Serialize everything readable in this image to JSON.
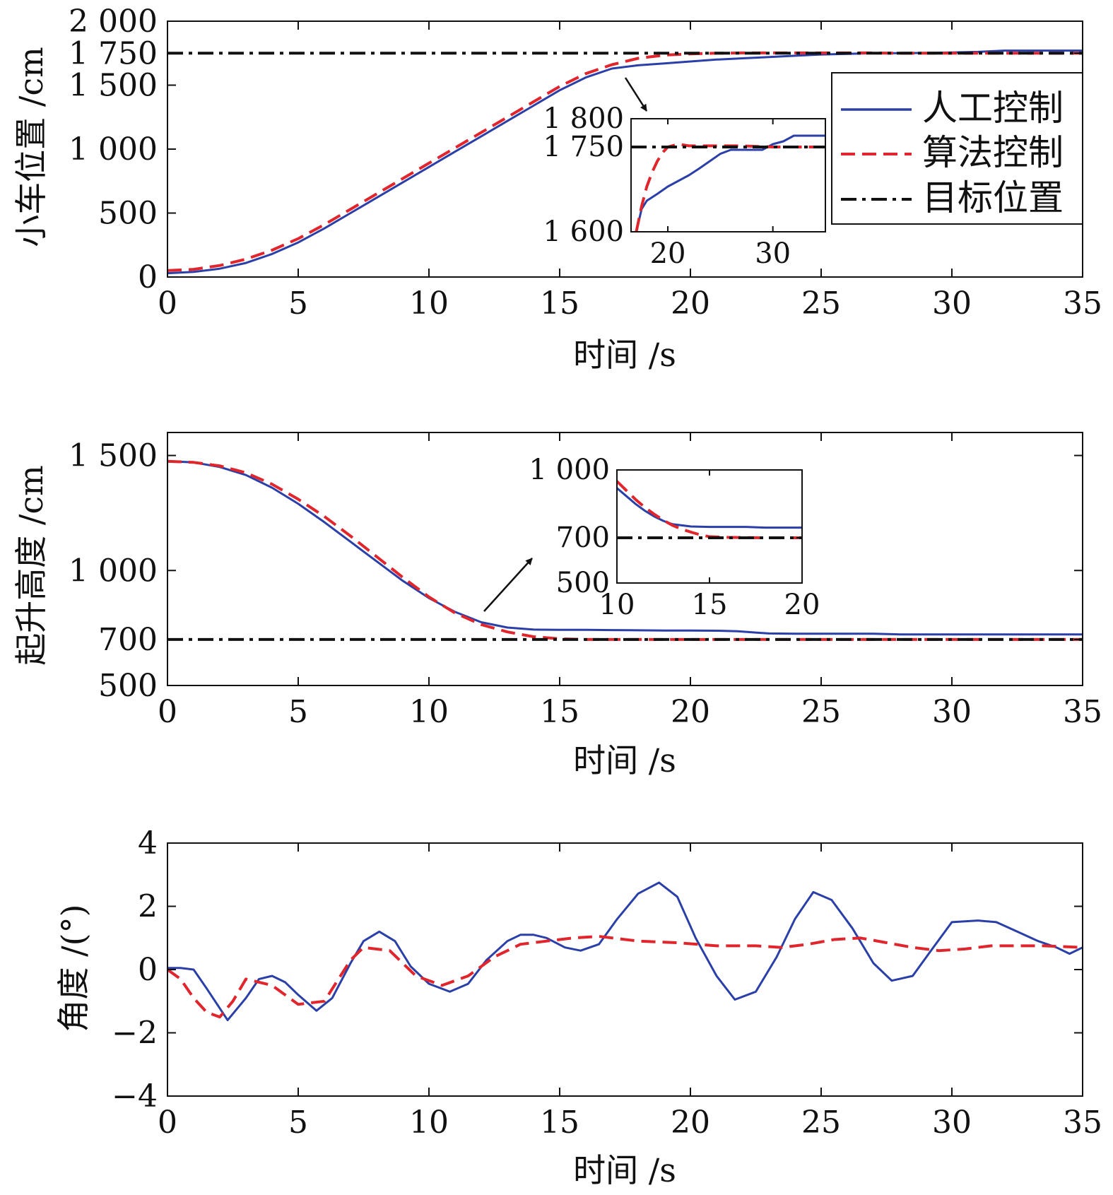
{
  "colors": {
    "manual": "#2b3fa8",
    "algorithm": "#e0262c",
    "target": "#111111"
  },
  "legend": {
    "manual": "人工控制",
    "algorithm": "算法控制",
    "target": "目标位置"
  },
  "chart_data": [
    {
      "type": "line",
      "ylabel": "小车位置 /cm",
      "xlabel": "时间 /s",
      "xlim": [
        0,
        35
      ],
      "ylim": [
        0,
        2000
      ],
      "xticks": [
        0,
        5,
        10,
        15,
        20,
        25,
        30,
        35
      ],
      "xtick_labels": [
        "0",
        "5",
        "10",
        "15",
        "20",
        "25",
        "30",
        "35"
      ],
      "yticks": [
        0,
        500,
        1000,
        1500,
        1750,
        2000
      ],
      "ytick_labels": [
        "0",
        "500",
        "1 000",
        "1 500",
        "1 750",
        "2 000"
      ],
      "legend_position": "right",
      "series": [
        {
          "key": "manual",
          "name": "人工控制",
          "x": [
            0,
            1,
            2,
            3,
            4,
            5,
            6,
            7,
            8,
            9,
            10,
            11,
            12,
            13,
            14,
            15,
            16,
            17,
            18,
            19,
            20,
            21,
            22,
            23,
            24,
            25,
            26,
            27,
            28,
            29,
            30,
            31,
            32,
            33,
            34,
            35
          ],
          "y": [
            30,
            40,
            65,
            110,
            180,
            270,
            380,
            500,
            620,
            740,
            860,
            980,
            1100,
            1220,
            1340,
            1460,
            1560,
            1630,
            1655,
            1670,
            1685,
            1700,
            1710,
            1720,
            1730,
            1740,
            1745,
            1750,
            1750,
            1752,
            1755,
            1760,
            1770,
            1770,
            1770,
            1770
          ]
        },
        {
          "key": "algorithm",
          "name": "算法控制",
          "x": [
            0,
            1,
            2,
            3,
            4,
            5,
            6,
            7,
            8,
            9,
            10,
            11,
            12,
            13,
            14,
            15,
            16,
            17,
            18,
            19,
            20,
            21,
            22,
            23,
            24,
            25,
            26,
            27,
            28,
            29,
            30,
            31,
            32,
            33,
            34,
            35
          ],
          "y": [
            50,
            60,
            90,
            140,
            210,
            300,
            410,
            530,
            650,
            770,
            890,
            1010,
            1130,
            1250,
            1370,
            1490,
            1590,
            1660,
            1710,
            1735,
            1745,
            1750,
            1752,
            1752,
            1752,
            1752,
            1752,
            1752,
            1750,
            1750,
            1750,
            1750,
            1750,
            1750,
            1750,
            1750
          ]
        },
        {
          "key": "target",
          "name": "目标位置",
          "x": [
            0,
            35
          ],
          "y": [
            1750,
            1750
          ]
        }
      ],
      "inset": {
        "xlim": [
          16.5,
          35
        ],
        "ylim": [
          1600,
          1800
        ],
        "xticks": [
          20,
          30
        ],
        "xtick_labels": [
          "20",
          "30"
        ],
        "yticks": [
          1600,
          1750,
          1800
        ],
        "ytick_labels": [
          "1 600",
          "1 750",
          "1 800"
        ],
        "series": [
          {
            "key": "manual",
            "x": [
              17,
              17.5,
              18,
              19,
              20,
              21,
              22,
              23,
              24,
              25,
              26,
              27,
              28,
              29,
              30,
              31,
              32,
              33,
              34,
              35
            ],
            "y": [
              1600,
              1640,
              1655,
              1667,
              1680,
              1690,
              1700,
              1712,
              1725,
              1738,
              1745,
              1745,
              1745,
              1745,
              1755,
              1760,
              1770,
              1770,
              1770,
              1770
            ]
          },
          {
            "key": "algorithm",
            "x": [
              17,
              17.5,
              18,
              18.5,
              19,
              19.5,
              20,
              21,
              22,
              23,
              25,
              27,
              30,
              33,
              35
            ],
            "y": [
              1600,
              1645,
              1680,
              1705,
              1725,
              1740,
              1750,
              1755,
              1752,
              1752,
              1752,
              1752,
              1750,
              1750,
              1750
            ]
          },
          {
            "key": "target",
            "x": [
              16.5,
              35
            ],
            "y": [
              1750,
              1750
            ]
          }
        ]
      }
    },
    {
      "type": "line",
      "ylabel": "起升高度 /cm",
      "xlabel": "时间 /s",
      "xlim": [
        0,
        35
      ],
      "ylim": [
        500,
        1600
      ],
      "xticks": [
        0,
        5,
        10,
        15,
        20,
        25,
        30,
        35
      ],
      "xtick_labels": [
        "0",
        "5",
        "10",
        "15",
        "20",
        "25",
        "30",
        "35"
      ],
      "yticks": [
        500,
        700,
        1000,
        1500
      ],
      "ytick_labels": [
        "500",
        "700",
        "1 000",
        "1 500"
      ],
      "series": [
        {
          "key": "manual",
          "x": [
            0,
            1,
            2,
            3,
            4,
            5,
            6,
            7,
            8,
            9,
            10,
            11,
            12,
            13,
            14,
            15,
            16,
            17,
            18,
            19,
            20,
            21,
            21.8,
            22.5,
            23,
            24,
            25,
            26,
            27,
            28,
            29,
            30,
            31,
            32,
            33,
            34,
            35
          ],
          "y": [
            1475,
            1470,
            1450,
            1415,
            1360,
            1290,
            1210,
            1125,
            1040,
            955,
            880,
            820,
            775,
            752,
            743,
            742,
            742,
            741,
            740,
            739,
            739,
            738,
            736,
            730,
            726,
            725,
            725,
            725,
            725,
            722,
            722,
            722,
            722,
            722,
            722,
            722,
            722
          ]
        },
        {
          "key": "algorithm",
          "x": [
            0,
            1,
            2,
            3,
            4,
            5,
            6,
            7,
            8,
            9,
            10,
            11,
            12,
            13,
            14,
            15,
            16,
            17,
            18,
            20,
            25,
            30,
            35
          ],
          "y": [
            1475,
            1470,
            1455,
            1425,
            1375,
            1310,
            1235,
            1150,
            1060,
            970,
            885,
            815,
            765,
            733,
            712,
            703,
            700,
            700,
            700,
            700,
            700,
            700,
            700
          ]
        },
        {
          "key": "target",
          "x": [
            0,
            35
          ],
          "y": [
            700,
            700
          ]
        }
      ],
      "inset": {
        "xlim": [
          10,
          20
        ],
        "ylim": [
          500,
          1000
        ],
        "xticks": [
          10,
          15,
          20
        ],
        "xtick_labels": [
          "10",
          "15",
          "20"
        ],
        "yticks": [
          500,
          700,
          1000
        ],
        "ytick_labels": [
          "500",
          "700",
          "1 000"
        ],
        "series": [
          {
            "key": "manual",
            "x": [
              10,
              10.5,
              11,
              11.5,
              12,
              12.5,
              13,
              14,
              15,
              16,
              17,
              18,
              19,
              20
            ],
            "y": [
              920,
              885,
              850,
              820,
              795,
              775,
              760,
              750,
              748,
              748,
              748,
              745,
              745,
              745
            ]
          },
          {
            "key": "algorithm",
            "x": [
              10,
              10.5,
              11,
              11.5,
              12,
              12.5,
              13,
              13.5,
              14,
              14.5,
              15,
              16,
              18,
              20
            ],
            "y": [
              950,
              910,
              870,
              835,
              805,
              778,
              755,
              738,
              725,
              713,
              705,
              702,
              700,
              700
            ]
          },
          {
            "key": "target",
            "x": [
              10,
              20
            ],
            "y": [
              700,
              700
            ]
          }
        ]
      }
    },
    {
      "type": "line",
      "ylabel": "角度 /(°)",
      "xlabel": "时间 /s",
      "xlim": [
        0,
        35
      ],
      "ylim": [
        -4,
        4
      ],
      "xticks": [
        0,
        5,
        10,
        15,
        20,
        25,
        30,
        35
      ],
      "xtick_labels": [
        "0",
        "5",
        "10",
        "15",
        "20",
        "25",
        "30",
        "35"
      ],
      "yticks": [
        -4,
        -2,
        0,
        2,
        4
      ],
      "ytick_labels": [
        "−4",
        "−2",
        "0",
        "2",
        "4"
      ],
      "series": [
        {
          "key": "manual",
          "x": [
            0,
            0.5,
            1,
            1.5,
            2.3,
            3,
            3.5,
            4,
            4.5,
            5,
            5.7,
            6.3,
            7,
            7.5,
            8.1,
            8.7,
            9.3,
            10,
            10.8,
            11.5,
            12.2,
            13,
            13.5,
            14,
            14.5,
            15.2,
            15.8,
            16.5,
            17.2,
            18,
            18.8,
            19.5,
            20.2,
            21,
            21.7,
            22.5,
            23.3,
            24,
            24.7,
            25.4,
            26.2,
            27,
            27.7,
            28.5,
            29.2,
            30,
            31,
            31.7,
            32.5,
            33.3,
            34,
            34.5,
            35
          ],
          "y": [
            0.05,
            0.05,
            0,
            -0.6,
            -1.6,
            -0.9,
            -0.3,
            -0.2,
            -0.4,
            -0.8,
            -1.3,
            -0.9,
            0.2,
            0.9,
            1.2,
            0.9,
            0.1,
            -0.45,
            -0.7,
            -0.45,
            0.3,
            0.9,
            1.1,
            1.1,
            1.0,
            0.7,
            0.6,
            0.8,
            1.6,
            2.4,
            2.75,
            2.3,
            1.0,
            -0.2,
            -0.95,
            -0.7,
            0.4,
            1.6,
            2.45,
            2.2,
            1.3,
            0.2,
            -0.35,
            -0.2,
            0.6,
            1.5,
            1.55,
            1.5,
            1.2,
            0.9,
            0.7,
            0.5,
            0.7
          ]
        },
        {
          "key": "algorithm",
          "x": [
            0,
            0.5,
            1,
            1.5,
            2,
            2.5,
            3,
            4,
            5,
            6,
            7,
            7.5,
            8.5,
            9.5,
            10.5,
            11.5,
            12.5,
            13.5,
            14.5,
            15.5,
            16.5,
            18,
            19.5,
            21,
            22.5,
            23.5,
            24.5,
            25.5,
            26.5,
            27.5,
            28.5,
            29.5,
            30.5,
            31.5,
            32.5,
            33.5,
            35
          ],
          "y": [
            0,
            -0.3,
            -0.9,
            -1.35,
            -1.5,
            -1.0,
            -0.3,
            -0.5,
            -1.1,
            -1.0,
            0.3,
            0.7,
            0.6,
            -0.2,
            -0.5,
            -0.2,
            0.4,
            0.8,
            0.9,
            1.0,
            1.05,
            0.9,
            0.85,
            0.75,
            0.75,
            0.7,
            0.8,
            0.95,
            1.0,
            0.85,
            0.7,
            0.6,
            0.65,
            0.75,
            0.75,
            0.75,
            0.7
          ]
        }
      ]
    }
  ]
}
